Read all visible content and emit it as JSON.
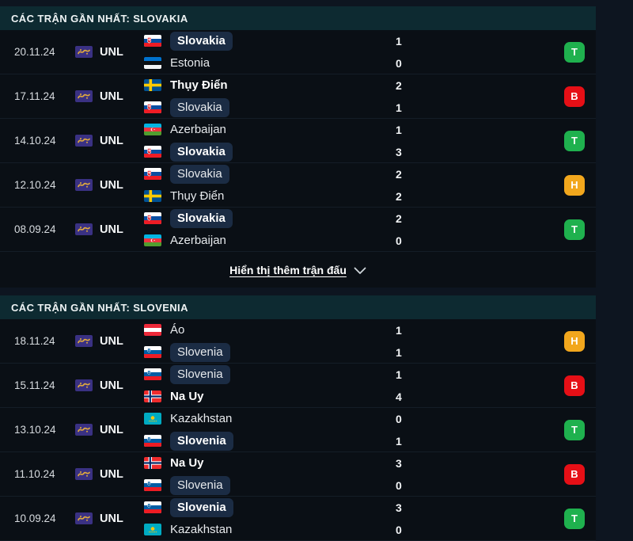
{
  "sections": [
    {
      "title": "CÁC TRẬN GẦN NHẤT: SLOVAKIA",
      "show_more_label": "Hiển thị thêm trận đấu",
      "matches": [
        {
          "date": "20.11.24",
          "competition": "UNL",
          "home": {
            "name": "Slovakia",
            "flag": "slovakia",
            "highlight": true,
            "bold": true
          },
          "away": {
            "name": "Estonia",
            "flag": "estonia",
            "highlight": false,
            "bold": false
          },
          "score": {
            "home": "1",
            "away": "0"
          },
          "result": {
            "label": "T",
            "type": "win"
          }
        },
        {
          "date": "17.11.24",
          "competition": "UNL",
          "home": {
            "name": "Thụy Điển",
            "flag": "sweden",
            "highlight": false,
            "bold": true
          },
          "away": {
            "name": "Slovakia",
            "flag": "slovakia",
            "highlight": true,
            "bold": false
          },
          "score": {
            "home": "2",
            "away": "1"
          },
          "result": {
            "label": "B",
            "type": "loss"
          }
        },
        {
          "date": "14.10.24",
          "competition": "UNL",
          "home": {
            "name": "Azerbaijan",
            "flag": "azerbaijan",
            "highlight": false,
            "bold": false
          },
          "away": {
            "name": "Slovakia",
            "flag": "slovakia",
            "highlight": true,
            "bold": true
          },
          "score": {
            "home": "1",
            "away": "3"
          },
          "result": {
            "label": "T",
            "type": "win"
          }
        },
        {
          "date": "12.10.24",
          "competition": "UNL",
          "home": {
            "name": "Slovakia",
            "flag": "slovakia",
            "highlight": true,
            "bold": false
          },
          "away": {
            "name": "Thụy Điển",
            "flag": "sweden",
            "highlight": false,
            "bold": false
          },
          "score": {
            "home": "2",
            "away": "2"
          },
          "result": {
            "label": "H",
            "type": "draw"
          }
        },
        {
          "date": "08.09.24",
          "competition": "UNL",
          "home": {
            "name": "Slovakia",
            "flag": "slovakia",
            "highlight": true,
            "bold": true
          },
          "away": {
            "name": "Azerbaijan",
            "flag": "azerbaijan",
            "highlight": false,
            "bold": false
          },
          "score": {
            "home": "2",
            "away": "0"
          },
          "result": {
            "label": "T",
            "type": "win"
          }
        }
      ]
    },
    {
      "title": "CÁC TRẬN GẦN NHẤT: SLOVENIA",
      "show_more_label": null,
      "matches": [
        {
          "date": "18.11.24",
          "competition": "UNL",
          "home": {
            "name": "Áo",
            "flag": "austria",
            "highlight": false,
            "bold": false
          },
          "away": {
            "name": "Slovenia",
            "flag": "slovenia",
            "highlight": true,
            "bold": false
          },
          "score": {
            "home": "1",
            "away": "1"
          },
          "result": {
            "label": "H",
            "type": "draw"
          }
        },
        {
          "date": "15.11.24",
          "competition": "UNL",
          "home": {
            "name": "Slovenia",
            "flag": "slovenia",
            "highlight": true,
            "bold": false
          },
          "away": {
            "name": "Na Uy",
            "flag": "norway",
            "highlight": false,
            "bold": true
          },
          "score": {
            "home": "1",
            "away": "4"
          },
          "result": {
            "label": "B",
            "type": "loss"
          }
        },
        {
          "date": "13.10.24",
          "competition": "UNL",
          "home": {
            "name": "Kazakhstan",
            "flag": "kazakhstan",
            "highlight": false,
            "bold": false
          },
          "away": {
            "name": "Slovenia",
            "flag": "slovenia",
            "highlight": true,
            "bold": true
          },
          "score": {
            "home": "0",
            "away": "1"
          },
          "result": {
            "label": "T",
            "type": "win"
          }
        },
        {
          "date": "11.10.24",
          "competition": "UNL",
          "home": {
            "name": "Na Uy",
            "flag": "norway",
            "highlight": false,
            "bold": true
          },
          "away": {
            "name": "Slovenia",
            "flag": "slovenia",
            "highlight": true,
            "bold": false
          },
          "score": {
            "home": "3",
            "away": "0"
          },
          "result": {
            "label": "B",
            "type": "loss"
          }
        },
        {
          "date": "10.09.24",
          "competition": "UNL",
          "home": {
            "name": "Slovenia",
            "flag": "slovenia",
            "highlight": true,
            "bold": true
          },
          "away": {
            "name": "Kazakhstan",
            "flag": "kazakhstan",
            "highlight": false,
            "bold": false
          },
          "score": {
            "home": "3",
            "away": "0"
          },
          "result": {
            "label": "T",
            "type": "win"
          }
        }
      ]
    }
  ],
  "result_colors": {
    "win": "#1fb14e",
    "loss": "#e60f16",
    "draw": "#f2a71d"
  }
}
